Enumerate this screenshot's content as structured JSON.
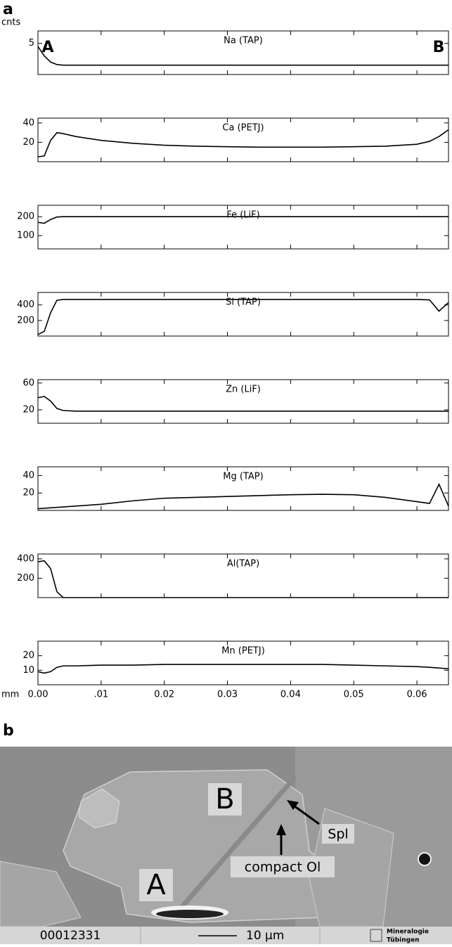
{
  "panel_labels": [
    "a",
    "b"
  ],
  "chart_data": [
    {
      "type": "line",
      "title": "Na (TAP)",
      "ylabel": "cnts",
      "annotations": [
        "A",
        "B"
      ],
      "x": [
        0,
        0.001,
        0.002,
        0.003,
        0.004,
        0.006,
        0.01,
        0.015,
        0.02,
        0.025,
        0.03,
        0.035,
        0.04,
        0.045,
        0.05,
        0.055,
        0.06,
        0.062,
        0.0635,
        0.065
      ],
      "series": [
        {
          "color": "#000000",
          "values": [
            4.5,
            3,
            2,
            1.6,
            1.5,
            1.5,
            1.5,
            1.5,
            1.5,
            1.5,
            1.5,
            1.5,
            1.5,
            1.5,
            1.5,
            1.5,
            1.5,
            1.5,
            1.5,
            1.5
          ]
        }
      ],
      "xlim": [
        0,
        0.065
      ],
      "xticks": [
        0,
        0.01,
        0.02,
        0.03,
        0.04,
        0.05,
        0.06
      ],
      "ylim": [
        0,
        7
      ],
      "yticks": [
        5
      ]
    },
    {
      "type": "line",
      "title": "Ca (PETJ)",
      "x": [
        0,
        0.001,
        0.002,
        0.003,
        0.004,
        0.006,
        0.01,
        0.015,
        0.02,
        0.025,
        0.03,
        0.035,
        0.04,
        0.045,
        0.05,
        0.055,
        0.06,
        0.062,
        0.0635,
        0.065
      ],
      "series": [
        {
          "color": "#000000",
          "values": [
            5,
            6,
            22,
            30,
            29,
            26,
            22,
            19,
            17,
            16,
            15.5,
            15,
            15,
            15,
            15.5,
            16,
            18,
            21,
            26,
            33
          ]
        }
      ],
      "xlim": [
        0,
        0.065
      ],
      "xticks": [
        0,
        0.01,
        0.02,
        0.03,
        0.04,
        0.05,
        0.06
      ],
      "ylim": [
        0,
        45
      ],
      "yticks": [
        20,
        40
      ]
    },
    {
      "type": "line",
      "title": "Fe (LiF)",
      "x": [
        0,
        0.001,
        0.002,
        0.003,
        0.004,
        0.006,
        0.01,
        0.015,
        0.02,
        0.025,
        0.03,
        0.035,
        0.04,
        0.045,
        0.05,
        0.055,
        0.06,
        0.062,
        0.0635,
        0.065
      ],
      "series": [
        {
          "color": "#000000",
          "values": [
            170,
            165,
            185,
            198,
            200,
            200,
            200,
            200,
            200,
            200,
            200,
            200,
            200,
            200,
            200,
            200,
            200,
            200,
            200,
            200
          ]
        }
      ],
      "xlim": [
        0,
        0.065
      ],
      "xticks": [
        0,
        0.01,
        0.02,
        0.03,
        0.04,
        0.05,
        0.06
      ],
      "ylim": [
        30,
        260
      ],
      "yticks": [
        100,
        200
      ]
    },
    {
      "type": "line",
      "title": "Si (TAP)",
      "x": [
        0,
        0.001,
        0.002,
        0.003,
        0.004,
        0.006,
        0.01,
        0.015,
        0.02,
        0.025,
        0.03,
        0.035,
        0.04,
        0.045,
        0.05,
        0.055,
        0.06,
        0.062,
        0.0635,
        0.065
      ],
      "series": [
        {
          "color": "#000000",
          "values": [
            20,
            60,
            300,
            460,
            470,
            470,
            470,
            470,
            470,
            470,
            470,
            470,
            470,
            470,
            470,
            470,
            470,
            465,
            320,
            430
          ]
        }
      ],
      "xlim": [
        0,
        0.065
      ],
      "xticks": [
        0,
        0.01,
        0.02,
        0.03,
        0.04,
        0.05,
        0.06
      ],
      "ylim": [
        0,
        560
      ],
      "yticks": [
        200,
        400
      ]
    },
    {
      "type": "line",
      "title": "Zn (LiF)",
      "x": [
        0,
        0.001,
        0.002,
        0.003,
        0.004,
        0.006,
        0.01,
        0.015,
        0.02,
        0.025,
        0.03,
        0.035,
        0.04,
        0.045,
        0.05,
        0.055,
        0.06,
        0.062,
        0.0635,
        0.065
      ],
      "series": [
        {
          "color": "#000000",
          "values": [
            38,
            40,
            33,
            22,
            19,
            18,
            18,
            18,
            18,
            18,
            18,
            18,
            18,
            18,
            18,
            18,
            18,
            18,
            18,
            18
          ]
        }
      ],
      "xlim": [
        0,
        0.065
      ],
      "xticks": [
        0,
        0.01,
        0.02,
        0.03,
        0.04,
        0.05,
        0.06
      ],
      "ylim": [
        0,
        65
      ],
      "yticks": [
        20,
        60
      ]
    },
    {
      "type": "line",
      "title": "Mg (TAP)",
      "x": [
        0,
        0.001,
        0.002,
        0.003,
        0.004,
        0.006,
        0.01,
        0.015,
        0.02,
        0.025,
        0.03,
        0.035,
        0.04,
        0.045,
        0.05,
        0.055,
        0.06,
        0.062,
        0.0635,
        0.065
      ],
      "series": [
        {
          "color": "#000000",
          "values": [
            2,
            2.5,
            3,
            3.5,
            4,
            5,
            7,
            11,
            14,
            15,
            16,
            17,
            18,
            18.5,
            18,
            15,
            10,
            8,
            30,
            5
          ]
        }
      ],
      "xlim": [
        0,
        0.065
      ],
      "xticks": [
        0,
        0.01,
        0.02,
        0.03,
        0.04,
        0.05,
        0.06
      ],
      "ylim": [
        0,
        50
      ],
      "yticks": [
        20,
        40
      ]
    },
    {
      "type": "line",
      "title": "Al(TAP)",
      "x": [
        0,
        0.001,
        0.002,
        0.003,
        0.004,
        0.006,
        0.01,
        0.015,
        0.02,
        0.025,
        0.03,
        0.035,
        0.04,
        0.045,
        0.05,
        0.055,
        0.06,
        0.062,
        0.0635,
        0.065
      ],
      "series": [
        {
          "color": "#000000",
          "values": [
            370,
            380,
            300,
            60,
            0,
            0,
            0,
            0,
            0,
            0,
            0,
            0,
            0,
            0,
            0,
            0,
            0,
            0,
            0,
            0
          ]
        }
      ],
      "xlim": [
        0,
        0.065
      ],
      "xticks": [
        0,
        0.01,
        0.02,
        0.03,
        0.04,
        0.05,
        0.06
      ],
      "ylim": [
        0,
        450
      ],
      "yticks": [
        200,
        400
      ]
    },
    {
      "type": "line",
      "title": "Mn (PETJ)",
      "xlabel": "mm",
      "x": [
        0,
        0.001,
        0.002,
        0.003,
        0.004,
        0.006,
        0.01,
        0.015,
        0.02,
        0.025,
        0.03,
        0.035,
        0.04,
        0.045,
        0.05,
        0.055,
        0.06,
        0.062,
        0.0635,
        0.065
      ],
      "series": [
        {
          "color": "#000000",
          "values": [
            9,
            8,
            9,
            12,
            13,
            13,
            13.5,
            13.5,
            14,
            14,
            14,
            14,
            14,
            14,
            13.5,
            13,
            12.5,
            12,
            11.5,
            11
          ]
        }
      ],
      "xlim": [
        0,
        0.065
      ],
      "xticks": [
        {
          "value": 0,
          "label": "0.00"
        },
        {
          "value": 0.01,
          "label": ".01"
        },
        {
          "value": 0.02,
          "label": "0.02"
        },
        {
          "value": 0.03,
          "label": "0.03"
        },
        {
          "value": 0.04,
          "label": "0.04"
        },
        {
          "value": 0.05,
          "label": "0.05"
        },
        {
          "value": 0.06,
          "label": "0.06"
        }
      ],
      "ylim": [
        0,
        30
      ],
      "yticks": [
        10,
        20
      ]
    }
  ],
  "image": {
    "labels": [
      "A",
      "B",
      "Spl",
      "compact Ol"
    ],
    "footer": {
      "id": "00012331",
      "scale": "10 µm",
      "logo": [
        "Mineralogie",
        "Tübingen"
      ]
    }
  }
}
